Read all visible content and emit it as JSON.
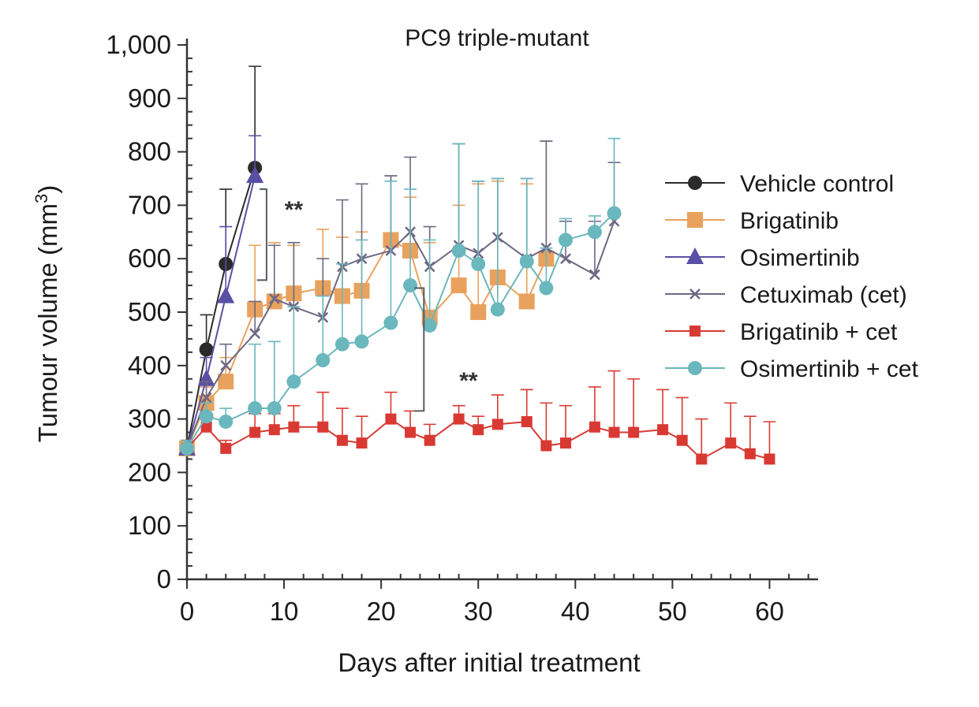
{
  "chart_data": {
    "type": "line",
    "title": "PC9 triple-mutant",
    "xlabel": "Days after initial treatment",
    "ylabel_main": "Tumour volume (mm",
    "ylabel_sup": "3",
    "ylabel_close": ")",
    "xlim": [
      0,
      65
    ],
    "ylim": [
      0,
      1000
    ],
    "xticks": [
      0,
      10,
      20,
      30,
      40,
      50,
      60
    ],
    "xtick_labels": [
      "0",
      "10",
      "20",
      "30",
      "40",
      "50",
      "60"
    ],
    "yticks": [
      0,
      100,
      200,
      300,
      400,
      500,
      600,
      700,
      800,
      900,
      1000
    ],
    "ytick_labels": [
      "0",
      "100",
      "200",
      "300",
      "400",
      "500",
      "600",
      "700",
      "800",
      "900",
      "1,000"
    ],
    "legend_position": "right",
    "series": [
      {
        "name": "Vehicle control",
        "color": "#2b2b2b",
        "marker": "circle",
        "x": [
          0,
          2,
          4,
          7
        ],
        "y": [
          245,
          430,
          590,
          770
        ],
        "err": [
          15,
          65,
          140,
          190
        ]
      },
      {
        "name": "Brigatinib",
        "color": "#e8a25e",
        "marker": "square",
        "x": [
          0,
          2,
          4,
          7,
          9,
          11,
          14,
          16,
          18,
          21,
          23,
          25,
          28,
          30,
          32,
          35,
          37
        ],
        "y": [
          245,
          330,
          370,
          505,
          520,
          535,
          545,
          530,
          540,
          635,
          615,
          490,
          550,
          500,
          565,
          520,
          600
        ],
        "err": [
          15,
          30,
          45,
          120,
          110,
          90,
          110,
          110,
          110,
          120,
          100,
          140,
          150,
          240,
          180,
          220,
          220
        ]
      },
      {
        "name": "Osimertinib",
        "color": "#5a4fa6",
        "marker": "triangle",
        "x": [
          0,
          2,
          4,
          7
        ],
        "y": [
          245,
          375,
          530,
          755
        ],
        "err": [
          15,
          40,
          130,
          75
        ]
      },
      {
        "name": "Cetuximab (cet)",
        "color": "#6e6883",
        "marker": "cross",
        "x": [
          0,
          2,
          4,
          7,
          9,
          11,
          14,
          16,
          18,
          21,
          23,
          25,
          28,
          30,
          32,
          35,
          37,
          39,
          42,
          44
        ],
        "y": [
          245,
          340,
          400,
          460,
          525,
          510,
          490,
          585,
          600,
          615,
          650,
          585,
          625,
          610,
          640,
          600,
          620,
          600,
          570,
          670
        ],
        "err": [
          15,
          30,
          40,
          60,
          100,
          120,
          110,
          125,
          140,
          140,
          140,
          75,
          190,
          135,
          110,
          150,
          200,
          70,
          100,
          110
        ]
      },
      {
        "name": "Brigatinib + cet",
        "color": "#d83a33",
        "marker": "square-small",
        "x": [
          0,
          2,
          4,
          7,
          9,
          11,
          14,
          16,
          18,
          21,
          23,
          25,
          28,
          30,
          32,
          35,
          37,
          39,
          42,
          44,
          46,
          49,
          51,
          53,
          56,
          58,
          60
        ],
        "y": [
          245,
          285,
          245,
          275,
          280,
          285,
          285,
          260,
          255,
          300,
          275,
          260,
          300,
          280,
          290,
          295,
          250,
          255,
          285,
          275,
          275,
          280,
          260,
          225,
          255,
          235,
          225
        ],
        "err": [
          15,
          25,
          15,
          35,
          30,
          40,
          65,
          60,
          50,
          50,
          40,
          30,
          25,
          25,
          55,
          60,
          80,
          70,
          75,
          115,
          100,
          75,
          80,
          75,
          75,
          70,
          70
        ]
      },
      {
        "name": "Osimertinib + cet",
        "color": "#6ab7bd",
        "marker": "circle",
        "x": [
          0,
          2,
          4,
          7,
          9,
          11,
          14,
          16,
          18,
          21,
          23,
          25,
          28,
          30,
          32,
          35,
          37,
          39,
          42,
          44
        ],
        "y": [
          245,
          305,
          295,
          320,
          320,
          370,
          410,
          440,
          445,
          480,
          550,
          475,
          615,
          590,
          505,
          595,
          545,
          635,
          650,
          685
        ],
        "err": [
          15,
          25,
          25,
          120,
          125,
          140,
          120,
          150,
          190,
          265,
          180,
          160,
          200,
          155,
          245,
          155,
          75,
          40,
          30,
          140
        ]
      }
    ],
    "annotations": [
      {
        "text": "**",
        "x": 11,
        "y": 695
      },
      {
        "text": "**",
        "x": 29,
        "y": 375
      }
    ]
  }
}
